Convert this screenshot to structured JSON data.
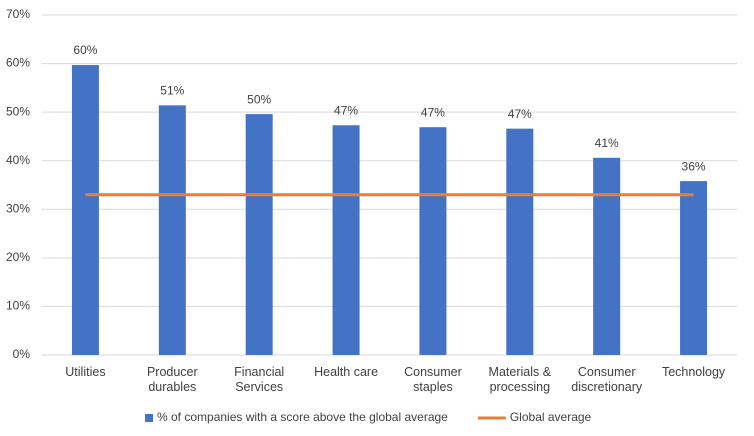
{
  "chart_data": {
    "type": "bar",
    "categories": [
      "Utilities",
      "Producer durables",
      "Financial Services",
      "Health care",
      "Consumer staples",
      "Materials & processing",
      "Consumer discretionary",
      "Technology"
    ],
    "series": [
      {
        "name": "% of companies with a score above the global average",
        "color": "#4472c4",
        "type": "bar",
        "values": [
          59.7,
          51.4,
          49.6,
          47.3,
          46.9,
          46.6,
          40.6,
          35.8
        ],
        "value_labels": [
          "60%",
          "51%",
          "50%",
          "47%",
          "47%",
          "47%",
          "41%",
          "36%"
        ]
      },
      {
        "name": "Global average",
        "color": "#ed7d31",
        "type": "line",
        "values": [
          33,
          33,
          33,
          33,
          33,
          33,
          33,
          33
        ]
      }
    ],
    "ylim": [
      0,
      70
    ],
    "yticks": [
      {
        "value": 0,
        "label": "0%"
      },
      {
        "value": 10,
        "label": "10%"
      },
      {
        "value": 20,
        "label": "20%"
      },
      {
        "value": 30,
        "label": "30%"
      },
      {
        "value": 40,
        "label": "40%"
      },
      {
        "value": 50,
        "label": "50%"
      },
      {
        "value": 60,
        "label": "60%"
      },
      {
        "value": 70,
        "label": "70%"
      }
    ],
    "grid": true,
    "legend": "bottom"
  }
}
